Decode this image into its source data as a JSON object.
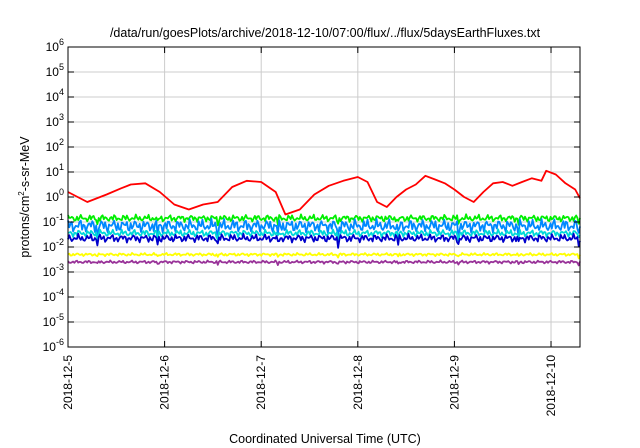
{
  "chart_data": {
    "type": "line",
    "title": "/data/run/goesPlots/archive/2018-12-10/07:00/flux/../flux/5daysEarthFluxes.txt",
    "xlabel": "Coordinated Universal Time (UTC)",
    "ylabel": {
      "base": "protons/cm",
      "sup": "2",
      "rest": "-s-sr-MeV"
    },
    "log_y": true,
    "grid": true,
    "ylim_exp": [
      -6,
      6
    ],
    "xlim_days": [
      0,
      5.3
    ],
    "x_ticks": [
      "2018-12-5",
      "2018-12-6",
      "2018-12-7",
      "2018-12-8",
      "2018-12-9",
      "2018-12-10"
    ],
    "series": [
      {
        "color": "#ff0000",
        "points": [
          [
            0,
            0.2
          ],
          [
            0.2,
            -0.2
          ],
          [
            0.4,
            0.1
          ],
          [
            0.55,
            0.35
          ],
          [
            0.65,
            0.5
          ],
          [
            0.8,
            0.55
          ],
          [
            0.95,
            0.2
          ],
          [
            1.1,
            -0.3
          ],
          [
            1.25,
            -0.5
          ],
          [
            1.4,
            -0.3
          ],
          [
            1.55,
            -0.2
          ],
          [
            1.7,
            0.4
          ],
          [
            1.85,
            0.65
          ],
          [
            2.0,
            0.6
          ],
          [
            2.15,
            0.2
          ],
          [
            2.25,
            -0.7
          ],
          [
            2.4,
            -0.5
          ],
          [
            2.55,
            0.1
          ],
          [
            2.7,
            0.45
          ],
          [
            2.85,
            0.65
          ],
          [
            3.0,
            0.8
          ],
          [
            3.1,
            0.6
          ],
          [
            3.2,
            -0.2
          ],
          [
            3.3,
            -0.4
          ],
          [
            3.4,
            0.0
          ],
          [
            3.5,
            0.3
          ],
          [
            3.6,
            0.5
          ],
          [
            3.7,
            0.85
          ],
          [
            3.8,
            0.7
          ],
          [
            3.9,
            0.55
          ],
          [
            4.0,
            0.3
          ],
          [
            4.1,
            0.0
          ],
          [
            4.2,
            -0.2
          ],
          [
            4.3,
            0.2
          ],
          [
            4.4,
            0.55
          ],
          [
            4.5,
            0.6
          ],
          [
            4.6,
            0.45
          ],
          [
            4.7,
            0.6
          ],
          [
            4.8,
            0.75
          ],
          [
            4.9,
            0.65
          ],
          [
            4.95,
            1.05
          ],
          [
            5.05,
            0.9
          ],
          [
            5.15,
            0.55
          ],
          [
            5.25,
            0.3
          ],
          [
            5.3,
            -0.05
          ]
        ]
      },
      {
        "color": "#00ee00",
        "base": -0.85,
        "amp": 0.07
      },
      {
        "color": "#0088ff",
        "base": -1.15,
        "amp": 0.13
      },
      {
        "color": "#00d8d8",
        "base": -1.45,
        "amp": 0.07
      },
      {
        "color": "#0000cc",
        "base": -1.65,
        "amp": 0.08
      },
      {
        "color": "#ffff00",
        "base": -2.3,
        "amp": 0.03
      },
      {
        "color": "#993399",
        "base": -2.6,
        "amp": 0.03
      }
    ]
  }
}
